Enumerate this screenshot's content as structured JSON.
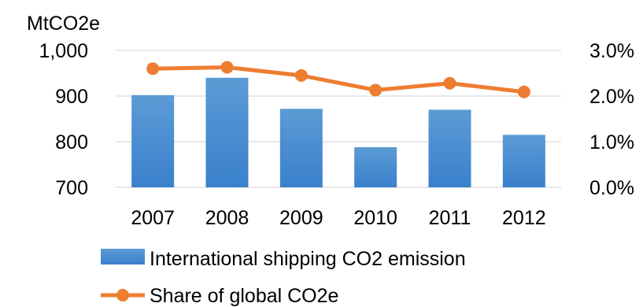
{
  "chart_data": {
    "type": "bar",
    "title": "",
    "xlabel": "",
    "ylabel": "MtCO2e",
    "categories": [
      "2007",
      "2008",
      "2009",
      "2010",
      "2011",
      "2012"
    ],
    "ylim": [
      700,
      1000
    ],
    "yticks": [
      "700",
      "800",
      "900",
      "1,000"
    ],
    "y2lim": [
      0,
      0.03
    ],
    "y2ticks": [
      "0.0%",
      "1.0%",
      "2.0%",
      "3.0%"
    ],
    "grid": true,
    "legend_position": "bottom",
    "series": [
      {
        "name": "International shipping CO2 emission",
        "type": "bar",
        "axis": "left",
        "color": "#4a8fd8",
        "values": [
          902,
          940,
          872,
          788,
          870,
          815
        ]
      },
      {
        "name": "Share of global CO2e",
        "type": "line",
        "axis": "right",
        "color": "#ee7d31",
        "values": [
          0.026,
          0.0263,
          0.0245,
          0.0213,
          0.0228,
          0.0209
        ]
      }
    ]
  }
}
